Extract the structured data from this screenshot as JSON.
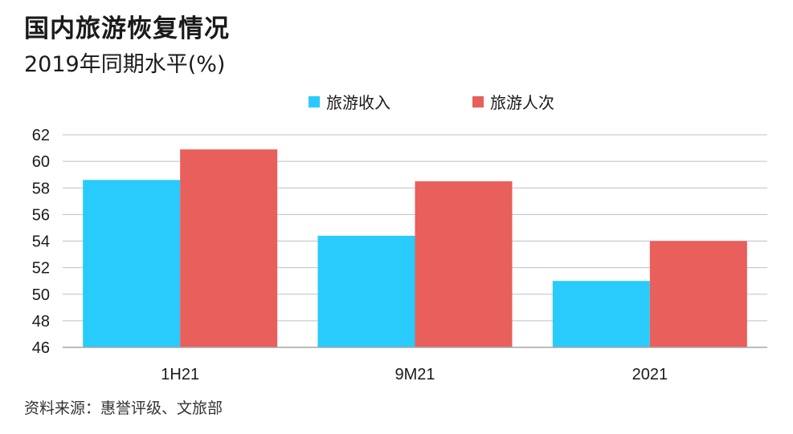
{
  "title": "国内旅游恢复情况",
  "subtitle": "2019年同期水平(%)",
  "source": "资料来源：惠誉评级、文旅部",
  "colors": {
    "series1": "#29CBFC",
    "series2": "#E95F5B",
    "grid": "#BFBFBF",
    "axis": "#A6A6A6"
  },
  "chart_data": {
    "type": "bar",
    "categories": [
      "1H21",
      "9M21",
      "2021"
    ],
    "series": [
      {
        "name": "旅游收入",
        "values": [
          58.6,
          54.4,
          51.0
        ]
      },
      {
        "name": "旅游人次",
        "values": [
          60.9,
          58.5,
          54.0
        ]
      }
    ],
    "ylim": [
      46,
      62
    ],
    "yticks": [
      46,
      48,
      50,
      52,
      54,
      56,
      58,
      60,
      62
    ],
    "grid": true,
    "legend_position": "top"
  }
}
